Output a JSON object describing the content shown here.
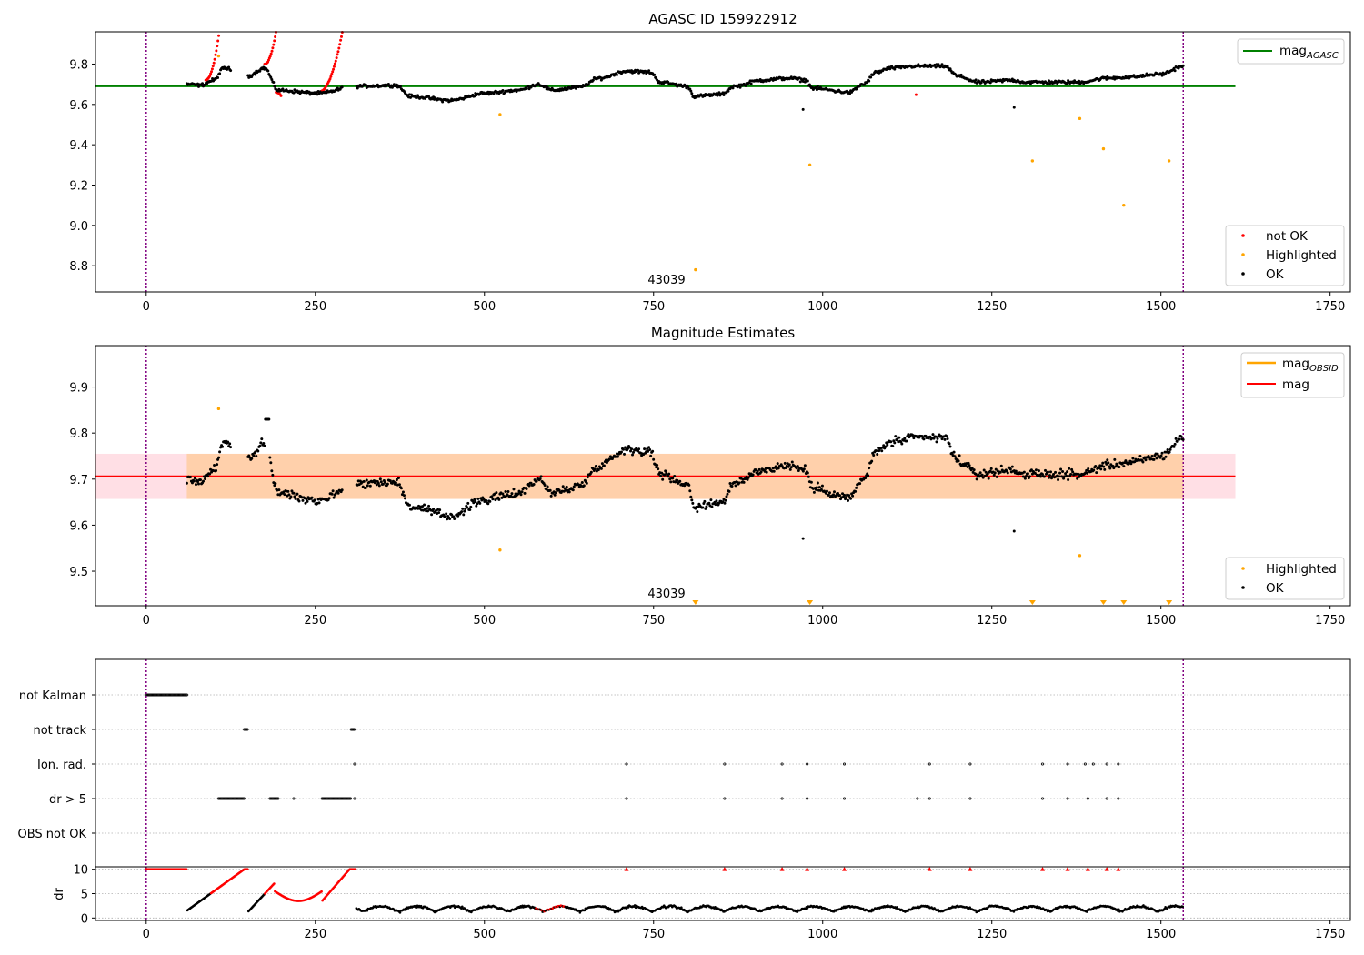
{
  "chart_data": [
    {
      "type": "scatter",
      "title": "AGASC ID 159922912",
      "xlim": [
        -75,
        1780
      ],
      "ylim": [
        8.67,
        9.96
      ],
      "x_ticks": [
        0,
        250,
        500,
        750,
        1000,
        1250,
        1500,
        1750
      ],
      "y_ticks": [
        "8.8",
        "9.0",
        "9.2",
        "9.4",
        "9.6",
        "9.8"
      ],
      "grid": false,
      "legend_upper": "top-right",
      "legend_lower": "bottom-right",
      "reference_line": {
        "name": "mag",
        "subscript": "AGASC",
        "y": 9.69,
        "x_range": [
          -75,
          1610
        ],
        "color": "#008000"
      },
      "obs_boundaries": [
        0,
        1533
      ],
      "obsid_label": {
        "text": "43039",
        "x": 765,
        "y": 8.73
      },
      "series": [
        {
          "name": "not OK",
          "color": "#ff0000"
        },
        {
          "name": "Highlighted",
          "color": "#ffa500"
        },
        {
          "name": "OK",
          "color": "#000000"
        }
      ],
      "highlighted_points": [
        {
          "x": 523,
          "y": 9.55
        },
        {
          "x": 812,
          "y": 8.78
        },
        {
          "x": 981,
          "y": 9.3
        },
        {
          "x": 1310,
          "y": 9.32
        },
        {
          "x": 1380,
          "y": 9.53
        },
        {
          "x": 1415,
          "y": 9.38
        },
        {
          "x": 1445,
          "y": 9.1
        },
        {
          "x": 1512,
          "y": 9.32
        },
        {
          "x": 107,
          "y": 9.84
        }
      ]
    },
    {
      "type": "scatter",
      "title": "Magnitude Estimates",
      "xlim": [
        -75,
        1780
      ],
      "ylim": [
        9.425,
        9.99
      ],
      "x_ticks": [
        0,
        250,
        500,
        750,
        1000,
        1250,
        1500,
        1750
      ],
      "y_ticks": [
        "9.5",
        "9.6",
        "9.7",
        "9.8",
        "9.9"
      ],
      "grid": false,
      "legend_upper": "top-right",
      "legend_lower": "bottom-right",
      "mag_line": {
        "name": "mag",
        "y": 9.706,
        "x_range": [
          -75,
          1610
        ],
        "color": "#ff0000"
      },
      "mag_band": {
        "y_low": 9.657,
        "y_high": 9.755,
        "x_range": [
          -75,
          1610
        ]
      },
      "obsid_series": {
        "name": "mag",
        "subscript": "OBSID",
        "color": "#ffa500",
        "y": 9.706,
        "x_range": [
          60,
          1533
        ]
      },
      "obs_boundaries": [
        0,
        1533
      ],
      "obsid_label": {
        "text": "43039",
        "x": 765,
        "y": 9.445
      },
      "series": [
        {
          "name": "Highlighted",
          "color": "#ffa500"
        },
        {
          "name": "OK",
          "color": "#000000"
        }
      ],
      "highlighted_points": [
        {
          "x": 523,
          "y": 9.546
        },
        {
          "x": 1380,
          "y": 9.534
        },
        {
          "x": 107,
          "y": 9.853
        }
      ],
      "below_range_markers_x": [
        812,
        981,
        1310,
        1415,
        1445,
        1512
      ]
    },
    {
      "type": "scatter",
      "title": "",
      "xlim": [
        -75,
        1780
      ],
      "categories": [
        "not Kalman",
        "not track",
        "Ion. rad.",
        "dr > 5",
        "OBS not OK"
      ],
      "flag_segments": {
        "not Kalman": [
          [
            0,
            60
          ]
        ],
        "not track": [
          [
            145,
            150
          ],
          [
            303,
            308
          ]
        ],
        "Ion. rad.": [
          [
            308,
            308
          ],
          [
            710,
            710
          ],
          [
            855,
            855
          ],
          [
            940,
            940
          ],
          [
            977,
            977
          ],
          [
            1032,
            1032
          ],
          [
            1158,
            1158
          ],
          [
            1218,
            1218
          ],
          [
            1325,
            1325
          ],
          [
            1362,
            1362
          ],
          [
            1388,
            1388
          ],
          [
            1400,
            1400
          ],
          [
            1420,
            1420
          ],
          [
            1437,
            1437
          ]
        ],
        "dr > 5": [
          [
            107,
            145
          ],
          [
            183,
            196
          ],
          [
            218,
            218
          ],
          [
            260,
            303
          ],
          [
            308,
            308
          ],
          [
            710,
            710
          ],
          [
            855,
            855
          ],
          [
            940,
            940
          ],
          [
            977,
            977
          ],
          [
            1032,
            1032
          ],
          [
            1140,
            1140
          ],
          [
            1158,
            1158
          ],
          [
            1218,
            1218
          ],
          [
            1325,
            1325
          ],
          [
            1362,
            1362
          ],
          [
            1392,
            1392
          ],
          [
            1420,
            1420
          ],
          [
            1437,
            1437
          ]
        ],
        "OBS not OK": []
      },
      "obs_boundaries": [
        0,
        1533
      ]
    },
    {
      "type": "scatter",
      "title": "",
      "ylabel": "dr",
      "xlim": [
        -75,
        1780
      ],
      "ylim": [
        -0.5,
        10.5
      ],
      "y_ticks": [
        "0",
        "5",
        "10"
      ],
      "x_ticks": [
        0,
        250,
        500,
        750,
        1000,
        1250,
        1500,
        1750
      ],
      "grid_lines_y": [
        0,
        5,
        10
      ],
      "obs_boundaries": [
        0,
        1533
      ],
      "colors": {
        "ok": "#000000",
        "over": "#ff0000"
      }
    }
  ]
}
